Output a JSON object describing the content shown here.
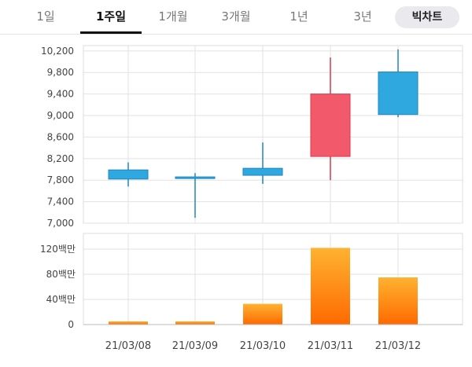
{
  "tabs": [
    {
      "label": "1일",
      "active": false
    },
    {
      "label": "1주일",
      "active": true
    },
    {
      "label": "1개월",
      "active": false
    },
    {
      "label": "3개월",
      "active": false
    },
    {
      "label": "1년",
      "active": false
    },
    {
      "label": "3년",
      "active": false
    }
  ],
  "big_chart_button": "빅차트",
  "colors": {
    "up": "#f25a6b",
    "down": "#2fa8e0",
    "volume_top": "#ffb231",
    "volume_bottom": "#ff6a00",
    "grid": "#e2e2e2"
  },
  "chart_data": [
    {
      "type": "candlestick",
      "categories": [
        "21/03/08",
        "21/03/09",
        "21/03/10",
        "21/03/11",
        "21/03/12"
      ],
      "ylim": [
        7000,
        10300
      ],
      "yticks": [
        7000,
        7400,
        7800,
        8200,
        8600,
        9000,
        9400,
        9800,
        10200
      ],
      "ytick_labels": [
        "7,000",
        "7,400",
        "7,800",
        "8,200",
        "8,600",
        "9,000",
        "9,400",
        "9,800",
        "10,200"
      ],
      "candles": [
        {
          "open": 7990,
          "close": 7820,
          "high": 8130,
          "low": 7680
        },
        {
          "open": 7860,
          "close": 7830,
          "high": 7930,
          "low": 7100
        },
        {
          "open": 8020,
          "close": 7890,
          "high": 8500,
          "low": 7730
        },
        {
          "open": 8240,
          "close": 9400,
          "high": 10080,
          "low": 7800
        },
        {
          "open": 9810,
          "close": 9020,
          "high": 10230,
          "low": 8970
        }
      ]
    },
    {
      "type": "bar",
      "categories": [
        "21/03/08",
        "21/03/09",
        "21/03/10",
        "21/03/11",
        "21/03/12"
      ],
      "values": [
        5,
        5,
        33,
        122,
        75
      ],
      "ylim": [
        0,
        145
      ],
      "yticks": [
        0,
        40,
        80,
        120
      ],
      "ytick_labels": [
        "0",
        "40백만",
        "80백만",
        "120백만"
      ],
      "x_labels": [
        "21/03/08",
        "21/03/09",
        "21/03/10",
        "21/03/11",
        "21/03/12"
      ]
    }
  ]
}
